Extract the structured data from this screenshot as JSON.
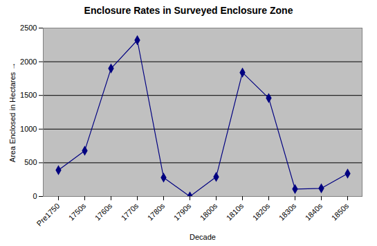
{
  "chart_data": {
    "type": "line",
    "title": "Enclosure Rates in Surveyed Enclosure Zone",
    "x_label": "Decade",
    "y_label": "Area Enclosed in Hectares",
    "categories": [
      "Pre1750",
      "1750s",
      "1760s",
      "1770s",
      "1780s",
      "1790s",
      "1800s",
      "1810s",
      "1820s",
      "1830s",
      "1840s",
      "1850s"
    ],
    "values": [
      390,
      680,
      1900,
      2320,
      280,
      0,
      290,
      1840,
      1460,
      110,
      120,
      340
    ],
    "color": "#000080",
    "marker": "diamond",
    "ylim": [
      0,
      2500
    ],
    "yticks": [
      0,
      500,
      1000,
      1500,
      2000,
      2500
    ],
    "grid": true
  }
}
